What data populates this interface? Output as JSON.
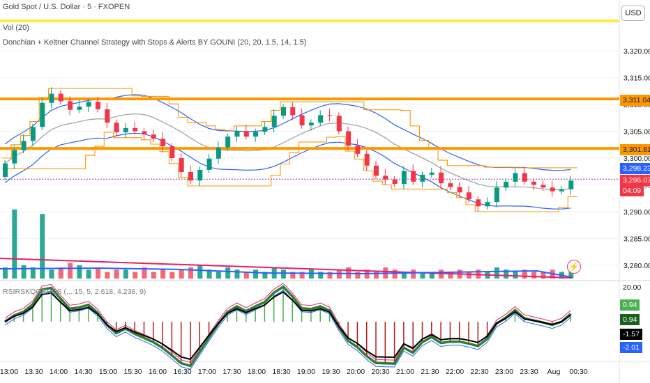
{
  "header": {
    "symbol_title": "Gold Spot / U.S. Dollar · 5 · FXOPEN",
    "volume_label": "Vol (20)",
    "strategy_label": "Donchian + Keltner Channel Strategy with Stops & Alerts BY GOUNI (20, 20, 1.5, 14, 1.5)",
    "oscillator_label": "RSIRSKQQEHDS (... 15, 5, 2.618, 4.236, 9)",
    "currency_button": "USD"
  },
  "price_axis": {
    "ticks": [
      "3,320.00",
      "3,315.00",
      "3,310.00",
      "3,305.00",
      "3,300.00",
      "3,295.00",
      "3,290.00",
      "3,285.00",
      "3,280.00"
    ],
    "tick_values": [
      3320,
      3315,
      3310,
      3305,
      3300,
      3295,
      3290,
      3285,
      3280
    ]
  },
  "price_tags": {
    "upper_level": "3,311.04",
    "lower_level": "3,301.81",
    "keltner_upper": "3,298.23",
    "last_price": "3,296.07",
    "countdown": "04:09"
  },
  "oscillator_axis": {
    "top_tick": "20.00",
    "tags": [
      "0.94",
      "0.94",
      "-1.57",
      "-2.01"
    ]
  },
  "time_axis": {
    "labels": [
      "13:00",
      "13:30",
      "14:00",
      "14:30",
      "15:00",
      "15:30",
      "16:00",
      "16:30",
      "17:00",
      "17:30",
      "18:00",
      "18:30",
      "19:00",
      "19:30",
      "20:00",
      "20:30",
      "21:00",
      "21:30",
      "22:00",
      "22:30",
      "23:00",
      "23:30",
      "Aug",
      "00:30"
    ]
  },
  "horizontal_levels": [
    3311.04,
    3301.81
  ],
  "alert_icon": "lightning-icon",
  "colors": {
    "up": "#089981",
    "down": "#f23645",
    "donchian": "#ff9800",
    "keltner_band": "#2962ff",
    "keltner_mid": "#9e9e9e",
    "level_line": "#ff9800",
    "header_line": "#ffeb3b"
  },
  "chart_data": {
    "type": "candlestick",
    "x_start": "12:55",
    "bar_interval_minutes": 5,
    "ylim": [
      3277,
      3327
    ],
    "close_series": [
      3299.0,
      3301.5,
      3303.2,
      3305.8,
      3310.3,
      3312.0,
      3310.6,
      3309.0,
      3309.6,
      3310.5,
      3309.1,
      3306.6,
      3304.8,
      3305.6,
      3305.0,
      3304.4,
      3303.6,
      3302.2,
      3300.0,
      3297.4,
      3295.8,
      3297.8,
      3299.9,
      3302.0,
      3304.0,
      3305.0,
      3304.0,
      3304.9,
      3305.8,
      3307.9,
      3309.5,
      3308.0,
      3306.1,
      3306.6,
      3308.0,
      3307.9,
      3305.0,
      3302.3,
      3300.8,
      3298.6,
      3296.7,
      3296.0,
      3295.2,
      3297.6,
      3295.6,
      3296.9,
      3297.3,
      3295.3,
      3294.6,
      3293.6,
      3292.3,
      3291.0,
      3291.8,
      3294.5,
      3295.6,
      3297.2,
      3295.6,
      3295.0,
      3294.5,
      3293.8,
      3294.2,
      3295.8
    ],
    "volume_series": [
      5,
      31,
      6,
      5,
      29,
      4,
      5,
      7,
      6,
      4,
      5,
      3,
      4,
      4,
      3,
      5,
      3,
      4,
      3,
      4,
      5,
      6,
      4,
      3,
      5,
      4,
      3,
      4,
      3,
      5,
      4,
      3,
      3,
      4,
      3,
      3,
      4,
      5,
      3,
      4,
      3,
      5,
      4,
      3,
      4,
      3,
      3,
      4,
      3,
      4,
      3,
      4,
      3,
      5,
      4,
      3,
      4,
      3,
      3,
      4,
      3,
      3
    ],
    "last_price": 3296.07,
    "upper_level": 3311.04,
    "lower_level": 3301.81
  }
}
